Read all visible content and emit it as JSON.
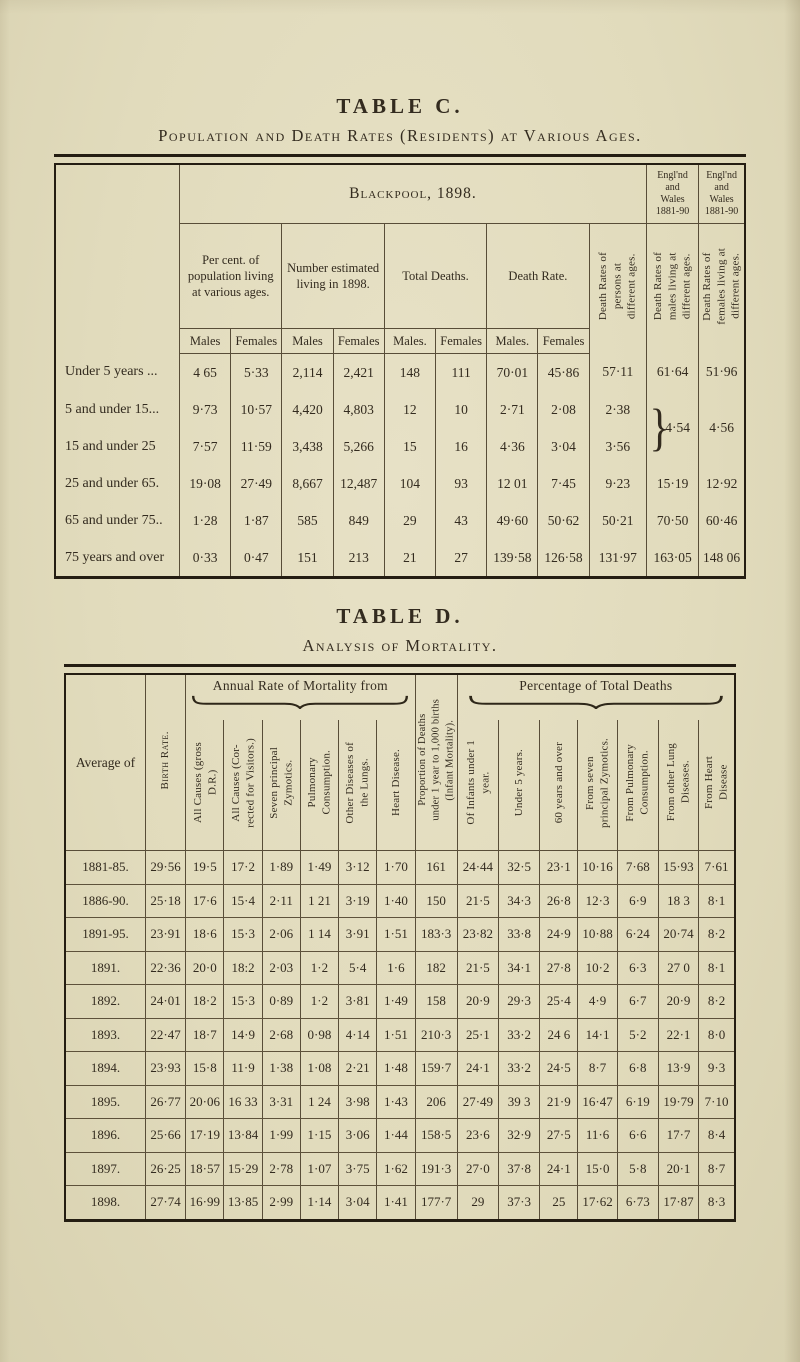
{
  "table_c": {
    "title": "TABLE C.",
    "subtitle": "Population and Death Rates (Residents) at Various Ages.",
    "blackpool_header": "Blackpool, 1898.",
    "ew_header_1": "Engl'nd\nand\nWales\n1881-90",
    "ew_header_2": "Engl'nd\nand\nWales\n1881-90",
    "group_headers": [
      "Per cent. of population living at various ages.",
      "Number estimated living in 1898.",
      "Total Deaths.",
      "Death Rate."
    ],
    "sex_headers": [
      "Males",
      "Females",
      "Males",
      "Females",
      "Males.",
      "Females",
      "Males.",
      "Females"
    ],
    "vertical_headers": [
      "Death Rates of\npersons at\ndifferent ages.",
      "Death Rates of\nmales living at\ndifferent ages.",
      "Death Rates of\nfemales living at\ndifferent ages."
    ],
    "brace_glyph": "}",
    "braced_cells": {
      "males_ew": "4·54",
      "females_ew": "4·56"
    },
    "rows": [
      {
        "label": "Under 5 years ...",
        "cells": [
          "4 65",
          "5·33",
          "2,114",
          "2,421",
          "148",
          "111",
          "70·01",
          "45·86",
          "57·11",
          "61·64",
          "51·96"
        ]
      },
      {
        "label": "5 and under 15...",
        "cells": [
          "9·73",
          "10·57",
          "4,420",
          "4,803",
          "12",
          "10",
          "2·71",
          "2·08",
          "2·38"
        ]
      },
      {
        "label": "15 and under 25",
        "cells": [
          "7·57",
          "11·59",
          "3,438",
          "5,266",
          "15",
          "16",
          "4·36",
          "3·04",
          "3·56"
        ]
      },
      {
        "label": "25 and under 65.",
        "cells": [
          "19·08",
          "27·49",
          "8,667",
          "12,487",
          "104",
          "93",
          "12 01",
          "7·45",
          "9·23",
          "15·19",
          "12·92"
        ]
      },
      {
        "label": "65 and under 75..",
        "cells": [
          "1·28",
          "1·87",
          "585",
          "849",
          "29",
          "43",
          "49·60",
          "50·62",
          "50·21",
          "70·50",
          "60·46"
        ]
      },
      {
        "label": "75 years and over",
        "cells": [
          "0·33",
          "0·47",
          "151",
          "213",
          "21",
          "27",
          "139·58",
          "126·58",
          "131·97",
          "163·05",
          "148 06"
        ]
      }
    ]
  },
  "table_d": {
    "title": "TABLE D.",
    "subtitle": "Analysis of Mortality.",
    "col1_header": "Average of",
    "group_annual": "Annual Rate of Mortality from",
    "group_percentage": "Percentage of Total Deaths",
    "vertical_headers": [
      "Birth Rate.",
      "All Causes (gross\nD.R.)",
      "All Causes (Cor-\nrected for Visitors.)",
      "Seven principal\nZymotics.",
      "Pulmonary\nConsumption.",
      "Other Diseases of\nthe Lungs.",
      "Heart Disease.",
      "Proportion of Deaths\nunder 1 year to 1,000 births\n(Infant Mortality).",
      "Of Infants under 1\nyear.",
      "Under 5 years.",
      "60 years and over",
      "From seven\nprincipal Zymotics.",
      "From Pulmonary\nConsumption.",
      "From other Lung\nDiseases.",
      "From Heart\nDisease"
    ],
    "rows": [
      {
        "label": "1881-85.",
        "values": [
          "29·56",
          "19·5",
          "17·2",
          "1·89",
          "1·49",
          "3·12",
          "1·70",
          "161",
          "24·44",
          "32·5",
          "23·1",
          "10·16",
          "7·68",
          "15·93",
          "7·61"
        ]
      },
      {
        "label": "1886-90.",
        "values": [
          "25·18",
          "17·6",
          "15·4",
          "2·11",
          "1 21",
          "3·19",
          "1·40",
          "150",
          "21·5",
          "34·3",
          "26·8",
          "12·3",
          "6·9",
          "18 3",
          "8·1"
        ]
      },
      {
        "label": "1891-95.",
        "values": [
          "23·91",
          "18·6",
          "15·3",
          "2·06",
          "1 14",
          "3·91",
          "1·51",
          "183·3",
          "23·82",
          "33·8",
          "24·9",
          "10·88",
          "6·24",
          "20·74",
          "8·2"
        ]
      },
      {
        "label": "1891.",
        "values": [
          "22·36",
          "20·0",
          "18:2",
          "2·03",
          "1·2",
          "5·4",
          "1·6",
          "182",
          "21·5",
          "34·1",
          "27·8",
          "10·2",
          "6·3",
          "27 0",
          "8·1"
        ]
      },
      {
        "label": "1892.",
        "values": [
          "24·01",
          "18·2",
          "15·3",
          "0·89",
          "1·2",
          "3·81",
          "1·49",
          "158",
          "20·9",
          "29·3",
          "25·4",
          "4·9",
          "6·7",
          "20·9",
          "8·2"
        ]
      },
      {
        "label": "1893.",
        "values": [
          "22·47",
          "18·7",
          "14·9",
          "2·68",
          "0·98",
          "4·14",
          "1·51",
          "210·3",
          "25·1",
          "33·2",
          "24 6",
          "14·1",
          "5·2",
          "22·1",
          "8·0"
        ]
      },
      {
        "label": "1894.",
        "values": [
          "23·93",
          "15·8",
          "11·9",
          "1·38",
          "1·08",
          "2·21",
          "1·48",
          "159·7",
          "24·1",
          "33·2",
          "24·5",
          "8·7",
          "6·8",
          "13·9",
          "9·3"
        ]
      },
      {
        "label": "1895.",
        "values": [
          "26·77",
          "20·06",
          "16 33",
          "3·31",
          "1 24",
          "3·98",
          "1·43",
          "206",
          "27·49",
          "39 3",
          "21·9",
          "16·47",
          "6·19",
          "19·79",
          "7·10"
        ]
      },
      {
        "label": "1896.",
        "values": [
          "25·66",
          "17·19",
          "13·84",
          "1·99",
          "1·15",
          "3·06",
          "1·44",
          "158·5",
          "23·6",
          "32·9",
          "27·5",
          "11·6",
          "6·6",
          "17·7",
          "8·4"
        ]
      },
      {
        "label": "1897.",
        "values": [
          "26·25",
          "18·57",
          "15·29",
          "2·78",
          "1·07",
          "3·75",
          "1·62",
          "191·3",
          "27·0",
          "37·8",
          "24·1",
          "15·0",
          "5·8",
          "20·1",
          "8·7"
        ]
      },
      {
        "label": "1898.",
        "values": [
          "27·74",
          "16·99",
          "13·85",
          "2·99",
          "1·14",
          "3·04",
          "1·41",
          "177·7",
          "29",
          "37·3",
          "25",
          "17·62",
          "6·73",
          "17·87",
          "8·3"
        ]
      }
    ]
  }
}
